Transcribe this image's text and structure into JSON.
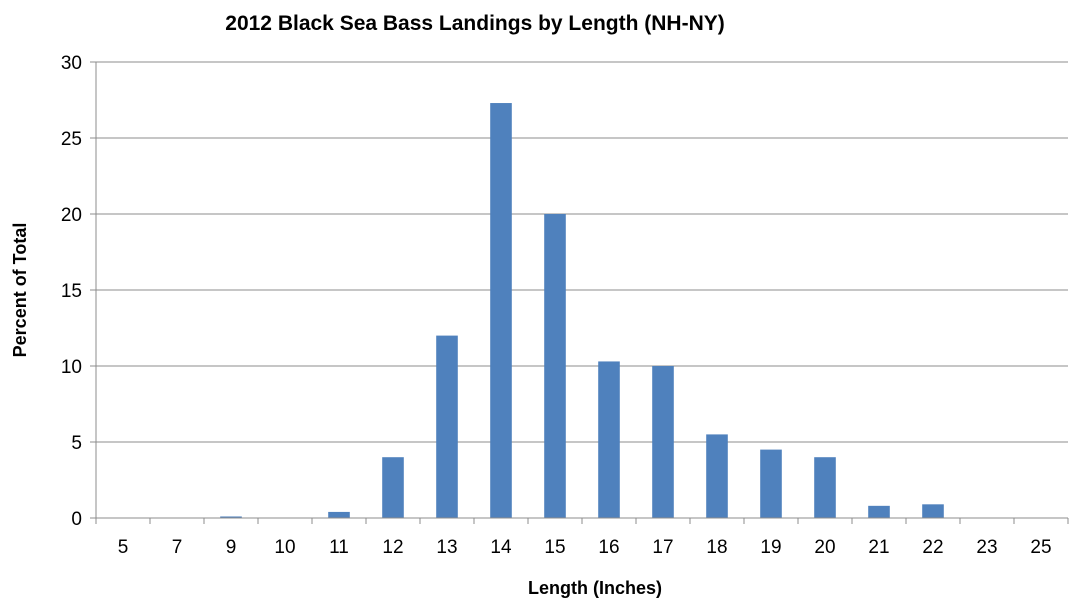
{
  "chart_data": {
    "type": "bar",
    "title": "2012 Black Sea Bass Landings by Length (NH-NY)",
    "xlabel": "Length (Inches)",
    "ylabel": "Percent of Total",
    "categories": [
      "5",
      "7",
      "9",
      "10",
      "11",
      "12",
      "13",
      "14",
      "15",
      "16",
      "17",
      "18",
      "19",
      "20",
      "21",
      "22",
      "23",
      "25"
    ],
    "values": [
      0,
      0,
      0.1,
      0,
      0.4,
      4,
      12,
      27.3,
      20,
      10.3,
      10,
      5.5,
      4.5,
      4,
      0.8,
      0.9,
      0,
      0
    ],
    "ylim": [
      0,
      30
    ],
    "yticks": [
      "0",
      "5",
      "10",
      "15",
      "20",
      "25",
      "30"
    ],
    "grid": true,
    "legend": "none",
    "bar_color": "#4f81bd"
  }
}
